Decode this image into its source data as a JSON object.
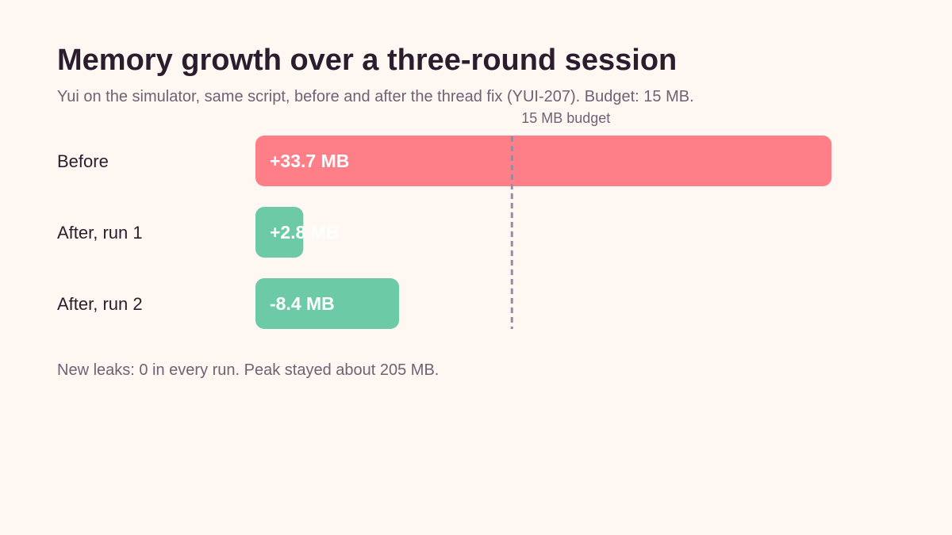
{
  "header": {
    "title": "Memory growth over a three-round session",
    "subtitle": "Yui on the simulator, same script, before and after the thread fix (YUI-207). Budget: 15 MB."
  },
  "footer": {
    "note": "New leaks: 0 in every run. Peak stayed about 205 MB."
  },
  "chart_data": {
    "type": "bar",
    "orientation": "horizontal",
    "title": "Memory growth over a three-round session",
    "unit": "MB",
    "categories": [
      "Before",
      "After, run 1",
      "After, run 2"
    ],
    "values": [
      33.7,
      2.8,
      -8.4
    ],
    "value_labels": [
      "+33.7 MB",
      "+2.8 MB",
      "-8.4 MB"
    ],
    "colors": [
      "#ff7f88",
      "#6ccba6",
      "#6ccba6"
    ],
    "reference_line": {
      "value": 15,
      "label": "15 MB budget",
      "color": "#9a8a9c"
    },
    "grid": false,
    "legend": "none"
  }
}
